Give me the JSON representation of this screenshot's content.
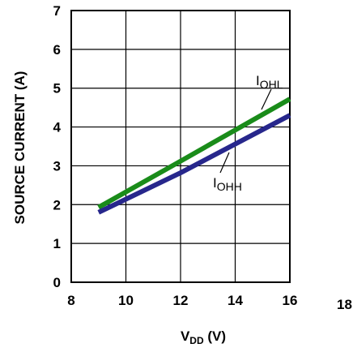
{
  "chart_data": {
    "type": "line",
    "title": "",
    "xlabel": {
      "main": "V",
      "sub": "DD",
      "unit": " (V)"
    },
    "ylabel": "SOURCE CURRENT (A)",
    "xlim": [
      8,
      18
    ],
    "ylim": [
      0,
      7
    ],
    "x_ticks": [
      "8",
      "10",
      "12",
      "14",
      "16",
      "18"
    ],
    "y_ticks": [
      "0",
      "1",
      "2",
      "3",
      "4",
      "5",
      "6",
      "7"
    ],
    "grid": true,
    "series": [
      {
        "name": {
          "main": "I",
          "sub": "OHL"
        },
        "color": "#1a8c1a",
        "points": [
          [
            9,
            1.93
          ],
          [
            12,
            3.12
          ],
          [
            16,
            4.72
          ]
        ]
      },
      {
        "name": {
          "main": "I",
          "sub": "OHH"
        },
        "color": "#27278c",
        "points": [
          [
            9,
            1.8
          ],
          [
            12,
            2.82
          ],
          [
            16,
            4.3
          ]
        ]
      }
    ]
  }
}
